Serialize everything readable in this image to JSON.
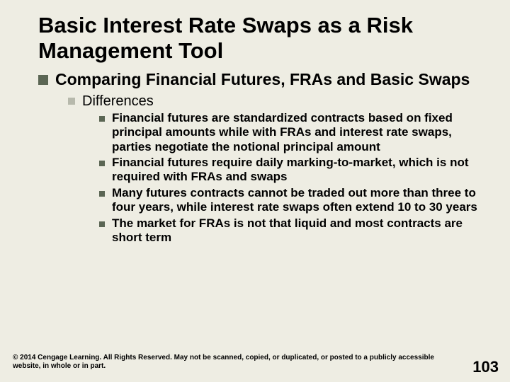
{
  "title": "Basic Interest Rate Swaps as a Risk Management Tool",
  "lvl1": "Comparing Financial Futures, FRAs and Basic Swaps",
  "lvl2": "Differences",
  "lvl3": [
    "Financial futures are standardized contracts based on fixed principal amounts while with FRAs and interest rate swaps, parties negotiate the notional principal amount",
    "Financial futures require daily marking-to-market, which is not required with FRAs and swaps",
    "Many futures contracts cannot be traded out more than three to four years, while interest rate swaps often extend 10 to 30 years",
    "The market for FRAs is not that liquid and most contracts are short term"
  ],
  "footer": "© 2014 Cengage Learning. All Rights Reserved. May not be scanned, copied, or duplicated, or posted to a publicly accessible website, in whole or in part.",
  "page": "103",
  "colors": {
    "background": "#eeede3",
    "bullet_dark": "#5b6654",
    "bullet_light": "#b7b9ac",
    "text": "#000000"
  }
}
